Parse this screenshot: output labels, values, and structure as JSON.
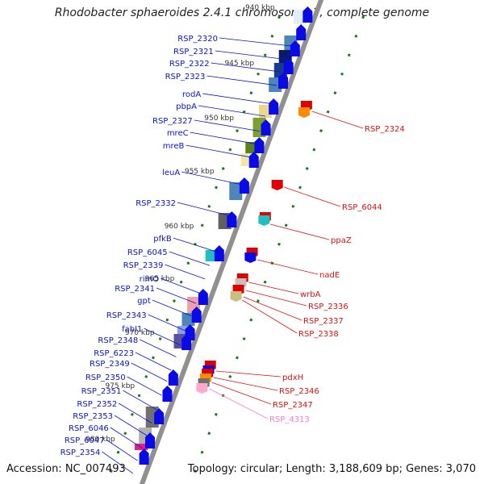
{
  "title": "Rhodobacter sphaeroides 2.4.1 chromosome 1, complete genome",
  "footer": {
    "accession": "Accession: NC_007493",
    "stats": "Topology: circular; Length: 3,188,609 bp; Genes: 3,070"
  },
  "colors": {
    "left_label": "#0a14c8",
    "right_label": "#e01010",
    "pink_label": "#ff7ac8",
    "forward_gene": "#0a0ae6",
    "reverse_gene": "#e00000",
    "backbone": "#909090",
    "tick": "#1a7a1a"
  },
  "scale_ticks": [
    "940 kbp",
    "945 kbp",
    "950 kbp",
    "955 kbp",
    "960 kbp",
    "965 kbp",
    "970 kbp",
    "975 kbp",
    "980 kbp"
  ],
  "left_labels": [
    "RSP_2320",
    "RSP_2321",
    "RSP_2322",
    "RSP_2323",
    "rodA",
    "pbpA",
    "RSP_2327",
    "mreC",
    "mreB",
    "leuA",
    "RSP_2332",
    "pfkB",
    "RSP_6045",
    "RSP_2339",
    "rimO",
    "RSP_2341",
    "gpt",
    "RSP_2343",
    "fabI1",
    "RSP_2348",
    "RSP_6223",
    "RSP_2349",
    "RSP_2350",
    "RSP_2351",
    "RSP_2352",
    "RSP_2353",
    "RSP_6046",
    "RSP_6047",
    "RSP_2354"
  ],
  "right_labels": [
    "RSP_2324",
    "RSP_6044",
    "ppaZ",
    "nadE",
    "wrbA",
    "RSP_2336",
    "RSP_2337",
    "RSP_2338",
    "pdxH",
    "RSP_2346",
    "RSP_2347",
    "RSP_4313"
  ]
}
